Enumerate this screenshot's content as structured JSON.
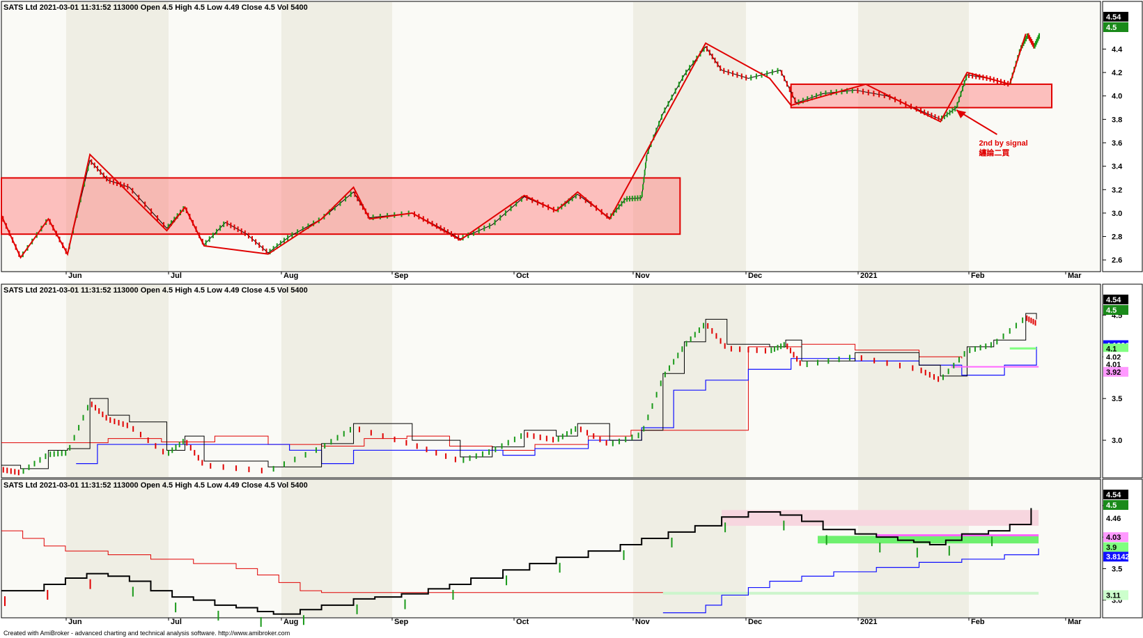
{
  "app": {
    "footer": "Created with AmiBroker - advanced charting and technical analysis software. http://www.amibroker.com"
  },
  "header_text": "SATS Ltd   2021-03-01 11:31:52  113000  Open 4.5  High 4.5  Low 4.49  Close 4.5  Vol 5400",
  "months": [
    "Jun",
    "Jul",
    "Aug",
    "Sep",
    "Oct",
    "Nov",
    "Dec",
    "2021",
    "Feb",
    "Mar"
  ],
  "chart_data": [
    {
      "type": "line",
      "name_id": "pane-1",
      "ylim": [
        2.5,
        4.7
      ],
      "yticks": [
        "4.4",
        "4.2",
        "4.0",
        "3.8",
        "3.6",
        "3.4",
        "3.2",
        "3.0",
        "2.8",
        "2.6"
      ],
      "last_high": "4.54",
      "last_close": "4.5",
      "zigzag": [
        [
          0.0,
          2.98
        ],
        [
          0.018,
          2.62
        ],
        [
          0.044,
          2.95
        ],
        [
          0.062,
          2.65
        ],
        [
          0.083,
          3.5
        ],
        [
          0.155,
          2.85
        ],
        [
          0.172,
          3.05
        ],
        [
          0.19,
          2.72
        ],
        [
          0.25,
          2.65
        ],
        [
          0.3,
          2.95
        ],
        [
          0.33,
          3.22
        ],
        [
          0.345,
          2.95
        ],
        [
          0.385,
          3.0
        ],
        [
          0.43,
          2.77
        ],
        [
          0.49,
          3.15
        ],
        [
          0.52,
          3.02
        ],
        [
          0.54,
          3.18
        ],
        [
          0.57,
          2.95
        ],
        [
          0.66,
          4.45
        ],
        [
          0.72,
          4.15
        ],
        [
          0.74,
          3.92
        ],
        [
          0.81,
          4.1
        ],
        [
          0.88,
          3.78
        ],
        [
          0.905,
          4.2
        ],
        [
          0.945,
          4.1
        ],
        [
          0.96,
          4.53
        ]
      ],
      "ranges": [
        {
          "x0": 0.0,
          "x1": 0.636,
          "y0": 2.82,
          "y1": 3.3
        },
        {
          "x0": 0.74,
          "x1": 1.0,
          "y0": 3.9,
          "y1": 4.1
        }
      ],
      "annotation": {
        "line1": "2nd by signal",
        "line2": "纏論二買",
        "point": [
          0.895,
          3.88
        ],
        "text_at": [
          0.92,
          3.6
        ]
      },
      "price_path": [
        [
          0.0,
          2.98
        ],
        [
          0.018,
          2.62
        ],
        [
          0.044,
          2.95
        ],
        [
          0.062,
          2.65
        ],
        [
          0.083,
          3.45
        ],
        [
          0.1,
          3.28
        ],
        [
          0.12,
          3.22
        ],
        [
          0.155,
          2.87
        ],
        [
          0.172,
          3.05
        ],
        [
          0.19,
          2.73
        ],
        [
          0.21,
          2.92
        ],
        [
          0.23,
          2.82
        ],
        [
          0.25,
          2.66
        ],
        [
          0.27,
          2.8
        ],
        [
          0.3,
          2.95
        ],
        [
          0.33,
          3.18
        ],
        [
          0.345,
          2.96
        ],
        [
          0.385,
          3.0
        ],
        [
          0.41,
          2.88
        ],
        [
          0.43,
          2.78
        ],
        [
          0.46,
          2.9
        ],
        [
          0.49,
          3.14
        ],
        [
          0.52,
          3.02
        ],
        [
          0.54,
          3.16
        ],
        [
          0.57,
          2.96
        ],
        [
          0.585,
          3.12
        ],
        [
          0.6,
          3.13
        ],
        [
          0.605,
          3.5
        ],
        [
          0.62,
          3.85
        ],
        [
          0.64,
          4.18
        ],
        [
          0.66,
          4.42
        ],
        [
          0.675,
          4.22
        ],
        [
          0.7,
          4.15
        ],
        [
          0.73,
          4.22
        ],
        [
          0.745,
          3.94
        ],
        [
          0.77,
          4.02
        ],
        [
          0.8,
          4.05
        ],
        [
          0.83,
          4.0
        ],
        [
          0.86,
          3.88
        ],
        [
          0.88,
          3.8
        ],
        [
          0.895,
          3.9
        ],
        [
          0.905,
          4.18
        ],
        [
          0.925,
          4.15
        ],
        [
          0.945,
          4.1
        ],
        [
          0.955,
          4.4
        ],
        [
          0.962,
          4.52
        ],
        [
          0.968,
          4.42
        ],
        [
          0.973,
          4.52
        ]
      ]
    },
    {
      "type": "line",
      "name_id": "pane-2",
      "ylim": [
        2.55,
        4.72
      ],
      "yticks": [
        "4.5",
        "4.0",
        "3.5",
        "3.0"
      ],
      "last_high": "4.54",
      "last_close": "4.5",
      "level_tags": [
        {
          "text": "4.13915",
          "bg": "#1010ff",
          "fg": "#ffffff",
          "v": 4.14
        },
        {
          "text": "4.1",
          "bg": "#80ff80",
          "fg": "#000000",
          "v": 4.1
        },
        {
          "text": "4.02",
          "bg": "#ffffff",
          "fg": "#000000",
          "v": 4.0
        },
        {
          "text": "4.01",
          "bg": "#ffffff",
          "fg": "#000000",
          "v": 3.91
        },
        {
          "text": "3.92",
          "bg": "#ff99ff",
          "fg": "#000000",
          "v": 3.82
        }
      ],
      "black_line": [
        [
          0.0,
          2.7
        ],
        [
          0.018,
          2.66
        ],
        [
          0.044,
          2.88
        ],
        [
          0.062,
          2.9
        ],
        [
          0.083,
          3.5
        ],
        [
          0.1,
          3.3
        ],
        [
          0.12,
          3.22
        ],
        [
          0.155,
          2.88
        ],
        [
          0.172,
          3.05
        ],
        [
          0.19,
          2.75
        ],
        [
          0.25,
          2.68
        ],
        [
          0.3,
          2.96
        ],
        [
          0.33,
          3.2
        ],
        [
          0.385,
          3.0
        ],
        [
          0.43,
          2.8
        ],
        [
          0.46,
          2.92
        ],
        [
          0.49,
          3.12
        ],
        [
          0.52,
          3.05
        ],
        [
          0.54,
          3.2
        ],
        [
          0.57,
          3.0
        ],
        [
          0.6,
          3.12
        ],
        [
          0.62,
          3.8
        ],
        [
          0.64,
          4.18
        ],
        [
          0.66,
          4.45
        ],
        [
          0.68,
          4.15
        ],
        [
          0.72,
          4.12
        ],
        [
          0.735,
          4.2
        ],
        [
          0.75,
          3.95
        ],
        [
          0.8,
          4.05
        ],
        [
          0.86,
          3.9
        ],
        [
          0.88,
          3.77
        ],
        [
          0.905,
          4.12
        ],
        [
          0.93,
          4.2
        ],
        [
          0.96,
          4.52
        ],
        [
          0.97,
          4.45
        ]
      ],
      "red_line": [
        [
          0.0,
          2.97
        ],
        [
          0.05,
          2.97
        ],
        [
          0.1,
          3.02
        ],
        [
          0.15,
          2.98
        ],
        [
          0.2,
          3.05
        ],
        [
          0.25,
          2.95
        ],
        [
          0.3,
          2.93
        ],
        [
          0.34,
          3.02
        ],
        [
          0.38,
          3.05
        ],
        [
          0.42,
          2.93
        ],
        [
          0.46,
          2.88
        ],
        [
          0.5,
          2.95
        ],
        [
          0.55,
          3.05
        ],
        [
          0.59,
          3.12
        ],
        [
          0.63,
          3.12
        ],
        [
          0.7,
          4.12
        ],
        [
          0.75,
          4.15
        ],
        [
          0.8,
          4.08
        ],
        [
          0.86,
          4.0
        ],
        [
          0.9,
          3.98
        ]
      ],
      "blue_line": [
        [
          0.07,
          2.72
        ],
        [
          0.09,
          2.95
        ],
        [
          0.13,
          2.95
        ],
        [
          0.17,
          2.95
        ],
        [
          0.27,
          2.88
        ],
        [
          0.3,
          2.72
        ],
        [
          0.33,
          2.88
        ],
        [
          0.44,
          2.88
        ],
        [
          0.47,
          2.82
        ],
        [
          0.5,
          2.9
        ],
        [
          0.55,
          3.0
        ],
        [
          0.58,
          3.0
        ],
        [
          0.6,
          3.15
        ],
        [
          0.63,
          3.6
        ],
        [
          0.66,
          3.72
        ],
        [
          0.7,
          3.85
        ],
        [
          0.74,
          3.98
        ],
        [
          0.8,
          3.95
        ],
        [
          0.86,
          3.9
        ],
        [
          0.9,
          3.78
        ],
        [
          0.94,
          3.9
        ],
        [
          0.97,
          4.12
        ]
      ],
      "green_seg": [
        [
          0.945,
          4.1
        ],
        [
          0.97,
          4.1
        ]
      ],
      "magenta_seg": [
        [
          0.89,
          3.88
        ],
        [
          0.972,
          3.88
        ]
      ]
    },
    {
      "type": "line",
      "name_id": "pane-3",
      "ylim": [
        2.72,
        4.72
      ],
      "yticks": [
        "4.5",
        "4.0",
        "3.5",
        "3.0"
      ],
      "last_high": "4.54",
      "last_close": "4.5",
      "level_tags": [
        {
          "text": "4.46",
          "bg": "#ffffff",
          "fg": "#000000",
          "v": 4.3
        },
        {
          "text": "4.03",
          "bg": "#ff99ff",
          "fg": "#000000",
          "v": 4.0
        },
        {
          "text": "3.9",
          "bg": "#80ff80",
          "fg": "#000000",
          "v": 3.84
        },
        {
          "text": "3.81424",
          "bg": "#1010ff",
          "fg": "#ffffff",
          "v": 3.69
        },
        {
          "text": "3.11",
          "bg": "#ccffcc",
          "fg": "#000000",
          "v": 3.08
        }
      ],
      "black_step": [
        [
          0.0,
          3.15
        ],
        [
          0.02,
          3.15
        ],
        [
          0.04,
          3.25
        ],
        [
          0.06,
          3.35
        ],
        [
          0.08,
          3.42
        ],
        [
          0.1,
          3.38
        ],
        [
          0.12,
          3.3
        ],
        [
          0.14,
          3.15
        ],
        [
          0.16,
          3.05
        ],
        [
          0.18,
          3.0
        ],
        [
          0.2,
          2.92
        ],
        [
          0.22,
          2.88
        ],
        [
          0.24,
          2.82
        ],
        [
          0.255,
          2.78
        ],
        [
          0.28,
          2.85
        ],
        [
          0.3,
          2.92
        ],
        [
          0.33,
          3.02
        ],
        [
          0.35,
          3.05
        ],
        [
          0.375,
          3.1
        ],
        [
          0.4,
          3.18
        ],
        [
          0.42,
          3.25
        ],
        [
          0.44,
          3.35
        ],
        [
          0.47,
          3.48
        ],
        [
          0.495,
          3.58
        ],
        [
          0.52,
          3.68
        ],
        [
          0.55,
          3.78
        ],
        [
          0.58,
          3.88
        ],
        [
          0.6,
          3.98
        ],
        [
          0.625,
          4.08
        ],
        [
          0.65,
          4.18
        ],
        [
          0.675,
          4.32
        ],
        [
          0.7,
          4.4
        ],
        [
          0.73,
          4.35
        ],
        [
          0.75,
          4.25
        ],
        [
          0.77,
          4.12
        ],
        [
          0.8,
          4.05
        ],
        [
          0.82,
          4.0
        ],
        [
          0.84,
          3.95
        ],
        [
          0.855,
          3.92
        ],
        [
          0.87,
          3.88
        ],
        [
          0.885,
          3.95
        ],
        [
          0.9,
          4.05
        ],
        [
          0.925,
          4.1
        ],
        [
          0.945,
          4.2
        ],
        [
          0.965,
          4.46
        ]
      ],
      "red_step": [
        [
          0.0,
          4.1
        ],
        [
          0.02,
          3.98
        ],
        [
          0.04,
          3.86
        ],
        [
          0.06,
          3.78
        ],
        [
          0.1,
          3.72
        ],
        [
          0.14,
          3.65
        ],
        [
          0.18,
          3.58
        ],
        [
          0.22,
          3.5
        ],
        [
          0.24,
          3.4
        ],
        [
          0.26,
          3.28
        ],
        [
          0.28,
          3.15
        ],
        [
          0.3,
          3.12
        ],
        [
          0.62,
          3.12
        ]
      ],
      "blue_step": [
        [
          0.62,
          2.8
        ],
        [
          0.64,
          2.8
        ],
        [
          0.66,
          2.92
        ],
        [
          0.675,
          3.08
        ],
        [
          0.7,
          3.2
        ],
        [
          0.72,
          3.3
        ],
        [
          0.75,
          3.38
        ],
        [
          0.78,
          3.45
        ],
        [
          0.82,
          3.52
        ],
        [
          0.86,
          3.6
        ],
        [
          0.9,
          3.65
        ],
        [
          0.94,
          3.72
        ],
        [
          0.972,
          3.82
        ]
      ],
      "pink_band": {
        "x0": 0.675,
        "x1": 0.972,
        "y0": 4.18,
        "y1": 4.43
      },
      "green_band": {
        "x0": 0.765,
        "x1": 0.972,
        "y0": 3.9,
        "y1": 4.02
      },
      "magenta_seg": [
        [
          0.82,
          4.03
        ],
        [
          0.972,
          4.03
        ]
      ],
      "lightgreen_seg": [
        [
          0.62,
          3.11
        ],
        [
          0.972,
          3.11
        ]
      ]
    }
  ]
}
